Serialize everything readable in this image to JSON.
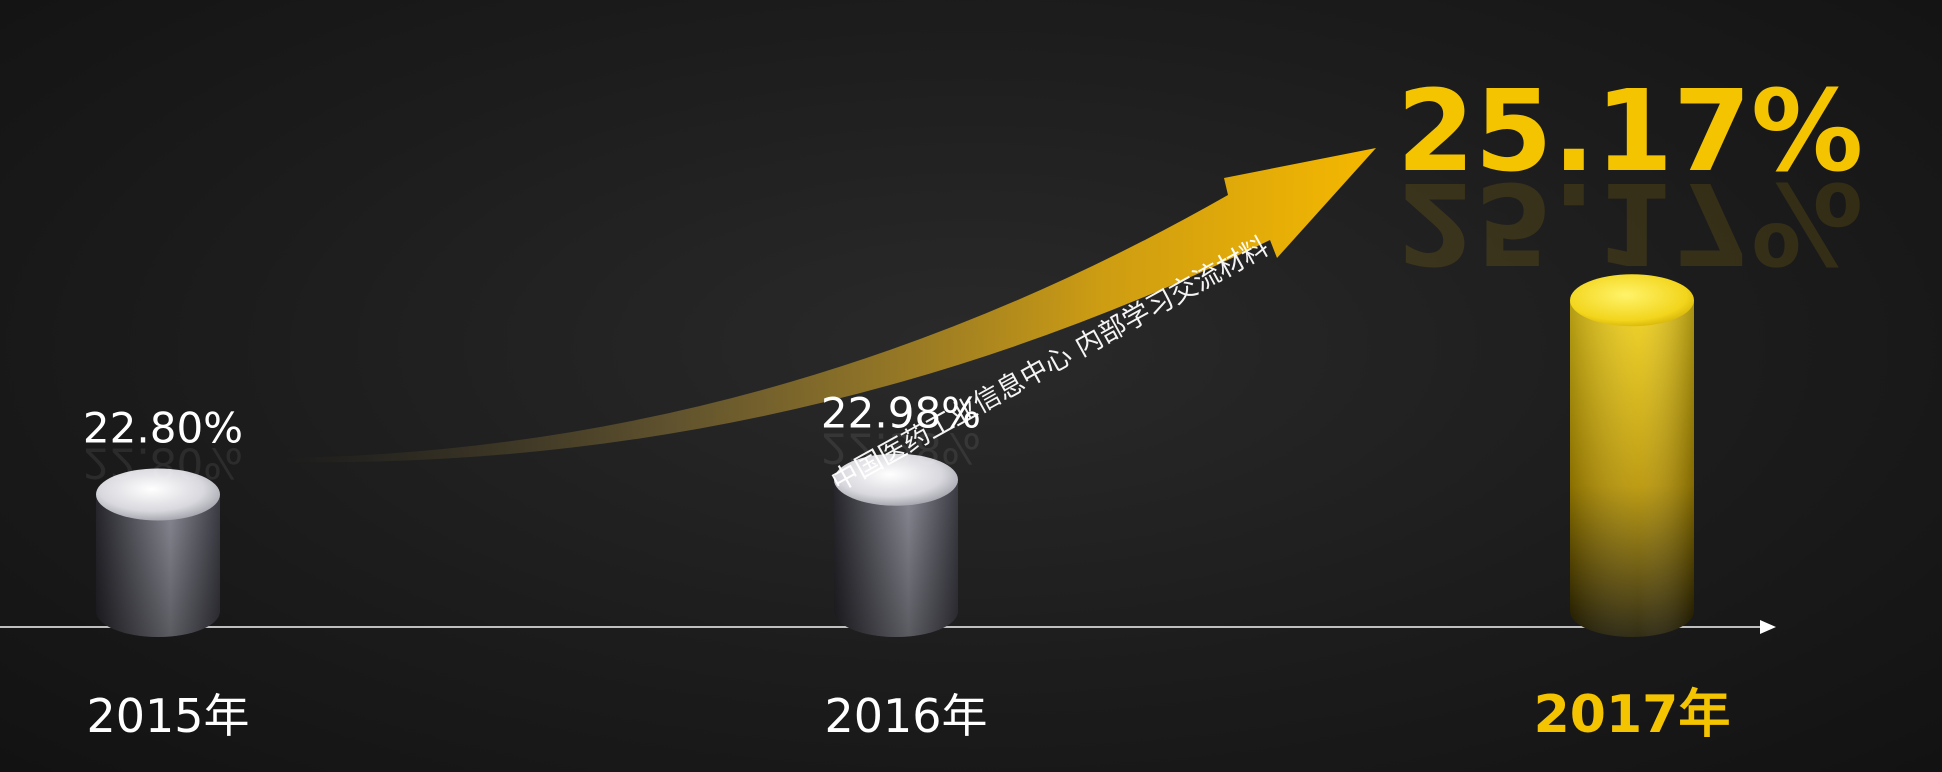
{
  "chart_data": {
    "type": "bar",
    "categories": [
      "2015年",
      "2016年",
      "2017年"
    ],
    "values": [
      22.8,
      22.98,
      25.17
    ],
    "value_labels": [
      "22.80%",
      "22.98%",
      "25.17%"
    ],
    "title": "",
    "xlabel": "",
    "ylabel": "",
    "highlight_index": 2,
    "colors": {
      "bar_gray_top": "#f2f2f6",
      "bar_gray_body_dark": "#26262c",
      "bar_gray_body_light": "#8b8b96",
      "bar_gold_top": "#f7e34a",
      "bar_gold_body_dark": "#2a2404",
      "bar_gold_body_light": "#d6b000",
      "highlight_text": "#f5c400",
      "label_text": "#ffffff",
      "axis": "#dcdcdc",
      "arrow": "#f5b800"
    }
  },
  "watermark": "中国医药工业信息中心  内部学习交流材料"
}
